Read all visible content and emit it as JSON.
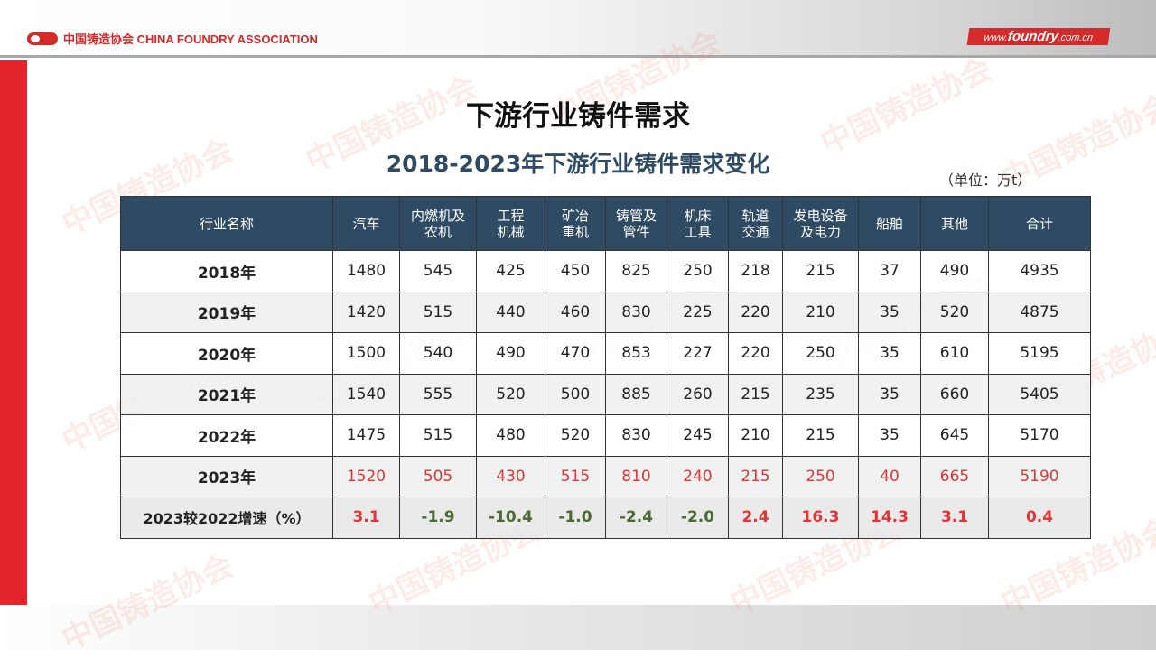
{
  "header": {
    "logo_text": "中国铸造协会 CHINA FOUNDRY ASSOCIATION",
    "site_prefix": "www.",
    "site_main": "foundry",
    "site_suffix": ".com.cn"
  },
  "watermark": {
    "cn": "中国铸造协会",
    "en": "CHINA FOUNDRY ASSOCIATION"
  },
  "title": "下游行业铸件需求",
  "subtitle": "2018-2023年下游行业铸件需求变化",
  "unit": "（单位：万t）",
  "colors": {
    "header_bg": "#2f4a63",
    "accent_red": "#e5252c",
    "positive": "#e03535",
    "negative": "#4a6a30"
  },
  "table": {
    "columns": [
      "行业名称",
      "汽车",
      "内燃机及\n农机",
      "工程\n机械",
      "矿冶\n重机",
      "铸管及\n管件",
      "机床\n工具",
      "轨道\n交通",
      "发电设备\n及电力",
      "船舶",
      "其他",
      "合计"
    ],
    "rows": [
      {
        "label": "2018年",
        "values": [
          "1480",
          "545",
          "425",
          "450",
          "825",
          "250",
          "218",
          "215",
          "37",
          "490",
          "4935"
        ]
      },
      {
        "label": "2019年",
        "values": [
          "1420",
          "515",
          "440",
          "460",
          "830",
          "225",
          "220",
          "210",
          "35",
          "520",
          "4875"
        ]
      },
      {
        "label": "2020年",
        "values": [
          "1500",
          "540",
          "490",
          "470",
          "853",
          "227",
          "220",
          "250",
          "35",
          "610",
          "5195"
        ]
      },
      {
        "label": "2021年",
        "values": [
          "1540",
          "555",
          "520",
          "500",
          "885",
          "260",
          "215",
          "235",
          "35",
          "660",
          "5405"
        ]
      },
      {
        "label": "2022年",
        "values": [
          "1475",
          "515",
          "480",
          "520",
          "830",
          "245",
          "210",
          "215",
          "35",
          "645",
          "5170"
        ]
      },
      {
        "label": "2023年",
        "values": [
          "1520",
          "505",
          "430",
          "515",
          "810",
          "240",
          "215",
          "250",
          "40",
          "665",
          "5190"
        ]
      }
    ],
    "growth": {
      "label": "2023较2022增速（%）",
      "values": [
        "3.1",
        "-1.9",
        "-10.4",
        "-1.0",
        "-2.4",
        "-2.0",
        "2.4",
        "16.3",
        "14.3",
        "3.1",
        "0.4"
      ]
    }
  }
}
